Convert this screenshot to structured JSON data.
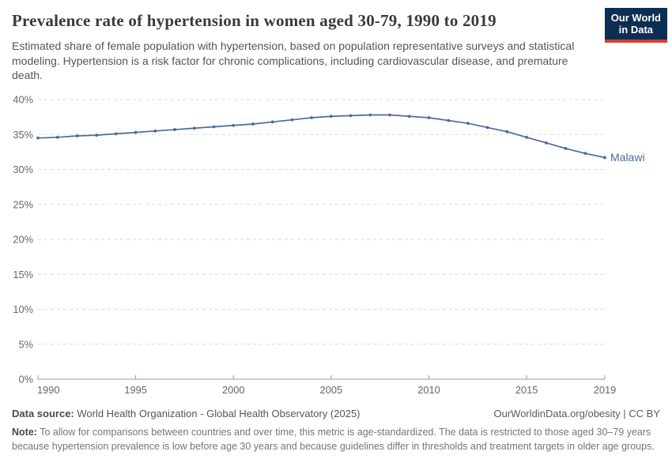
{
  "header": {
    "title": "Prevalence rate of hypertension in women aged 30-79, 1990 to 2019",
    "subtitle": "Estimated share of female population with hypertension, based on population representative surveys and statistical modeling. Hypertension is a risk factor for chronic complications, including cardiovascular disease, and premature death."
  },
  "logo": {
    "line1": "Our World",
    "line2": "in Data",
    "bg_color": "#0d2e52",
    "stripe_color": "#d93a2b"
  },
  "chart_data": {
    "type": "line",
    "title": "Prevalence rate of hypertension in women aged 30-79, 1990 to 2019",
    "xlabel": "",
    "ylabel": "",
    "x": [
      1990,
      1991,
      1992,
      1993,
      1994,
      1995,
      1996,
      1997,
      1998,
      1999,
      2000,
      2001,
      2002,
      2003,
      2004,
      2005,
      2006,
      2007,
      2008,
      2009,
      2010,
      2011,
      2012,
      2013,
      2014,
      2015,
      2016,
      2017,
      2018,
      2019
    ],
    "series": [
      {
        "name": "Malawi",
        "color": "#4c6a9c",
        "values": [
          34.5,
          34.6,
          34.8,
          34.9,
          35.1,
          35.3,
          35.5,
          35.7,
          35.9,
          36.1,
          36.3,
          36.5,
          36.8,
          37.1,
          37.4,
          37.6,
          37.7,
          37.8,
          37.8,
          37.6,
          37.4,
          37.0,
          36.6,
          36.0,
          35.4,
          34.6,
          33.8,
          33.0,
          32.3,
          31.7
        ]
      }
    ],
    "ylim": [
      0,
      40
    ],
    "yticks": [
      0,
      5,
      10,
      15,
      20,
      25,
      30,
      35,
      40
    ],
    "ytick_suffix": "%",
    "xticks": [
      1990,
      1995,
      2000,
      2005,
      2010,
      2015,
      2019
    ],
    "grid": "horizontal-dashed",
    "legend_position": "end-of-line-label"
  },
  "footer": {
    "datasource_label": "Data source:",
    "datasource": " World Health Organization - Global Health Observatory (2025)",
    "attribution": "OurWorldinData.org/obesity | CC BY",
    "note_label": "Note:",
    "note": " To allow for comparisons between countries and over time, this metric is age-standardized. The data is restricted to those aged 30–79 years because hypertension prevalence is low before age 30 years and because guidelines differ in thresholds and treatment targets in older age groups."
  }
}
